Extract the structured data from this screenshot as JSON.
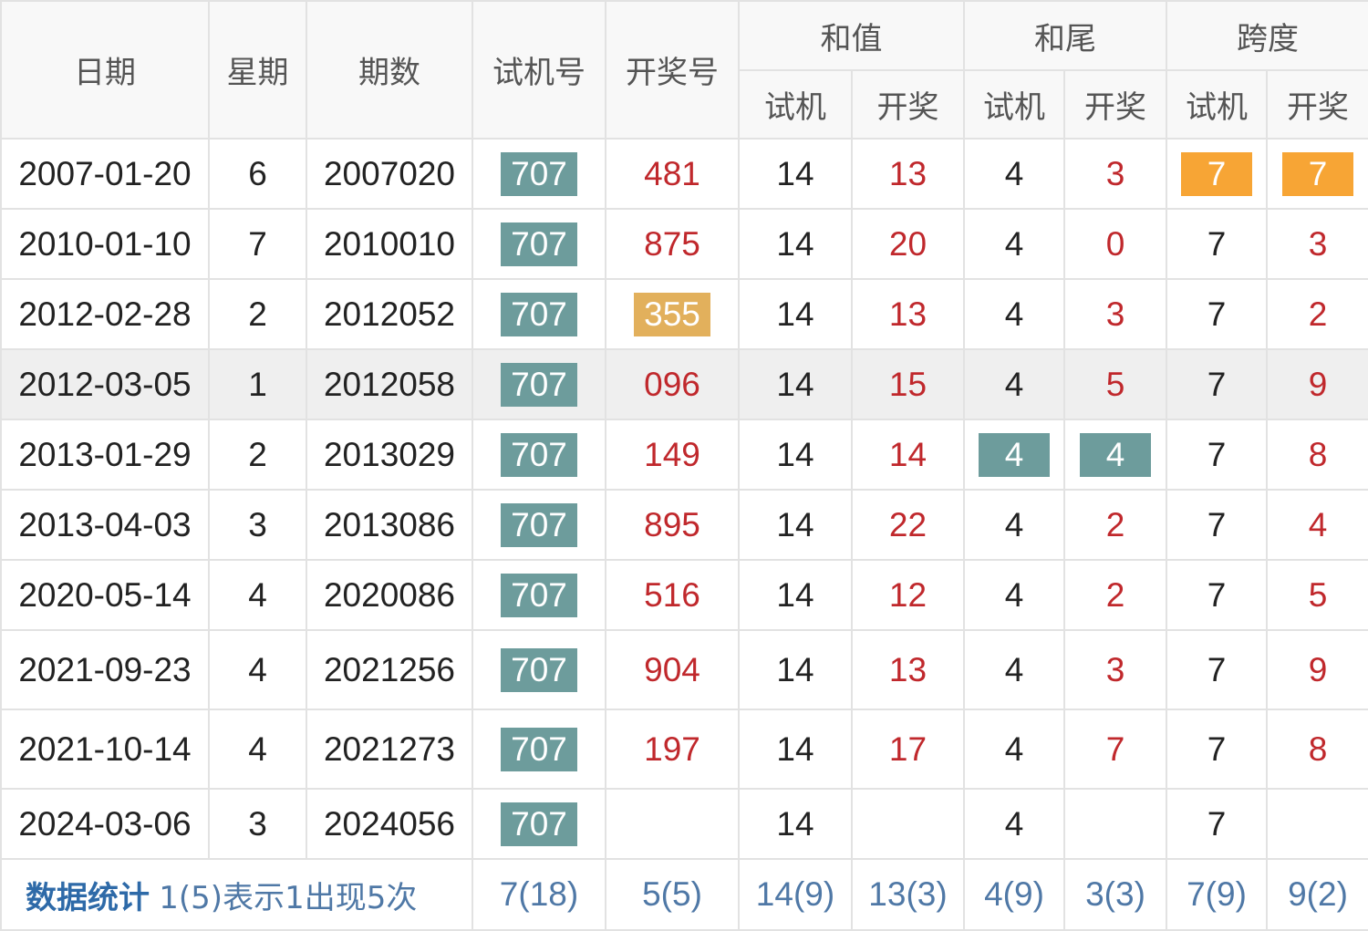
{
  "colors": {
    "trial_highlight": "#6d9c9c",
    "draw_highlight": "#e2b05c",
    "span_highlight": "#f7a535",
    "draw_text": "#c0282c",
    "stats_text": "#4f78a6"
  },
  "headers": {
    "date": "日期",
    "weekday": "星期",
    "issue": "期数",
    "trial": "试机号",
    "draw": "开奖号",
    "sum": "和值",
    "tail": "和尾",
    "span": "跨度",
    "sub_trial": "试机",
    "sub_draw": "开奖"
  },
  "rows": [
    {
      "date": "2007-01-20",
      "weekday": "6",
      "issue": "2007020",
      "trial": "707",
      "draw": "481",
      "sum_t": "14",
      "sum_d": "13",
      "tail_t": "4",
      "tail_d": "3",
      "span_t": "7",
      "span_d": "7",
      "hl": {
        "span_t": "orange",
        "span_d": "orange"
      }
    },
    {
      "date": "2010-01-10",
      "weekday": "7",
      "issue": "2010010",
      "trial": "707",
      "draw": "875",
      "sum_t": "14",
      "sum_d": "20",
      "tail_t": "4",
      "tail_d": "0",
      "span_t": "7",
      "span_d": "3",
      "hl": {}
    },
    {
      "date": "2012-02-28",
      "weekday": "2",
      "issue": "2012052",
      "trial": "707",
      "draw": "355",
      "sum_t": "14",
      "sum_d": "13",
      "tail_t": "4",
      "tail_d": "3",
      "span_t": "7",
      "span_d": "2",
      "hl": {
        "draw": "gold"
      }
    },
    {
      "date": "2012-03-05",
      "weekday": "1",
      "issue": "2012058",
      "trial": "707",
      "draw": "096",
      "sum_t": "14",
      "sum_d": "15",
      "tail_t": "4",
      "tail_d": "5",
      "span_t": "7",
      "span_d": "9",
      "hl": {},
      "hover": true
    },
    {
      "date": "2013-01-29",
      "weekday": "2",
      "issue": "2013029",
      "trial": "707",
      "draw": "149",
      "sum_t": "14",
      "sum_d": "14",
      "tail_t": "4",
      "tail_d": "4",
      "span_t": "7",
      "span_d": "8",
      "hl": {
        "tail_t": "teal",
        "tail_d": "teal"
      }
    },
    {
      "date": "2013-04-03",
      "weekday": "3",
      "issue": "2013086",
      "trial": "707",
      "draw": "895",
      "sum_t": "14",
      "sum_d": "22",
      "tail_t": "4",
      "tail_d": "2",
      "span_t": "7",
      "span_d": "4",
      "hl": {}
    },
    {
      "date": "2020-05-14",
      "weekday": "4",
      "issue": "2020086",
      "trial": "707",
      "draw": "516",
      "sum_t": "14",
      "sum_d": "12",
      "tail_t": "4",
      "tail_d": "2",
      "span_t": "7",
      "span_d": "5",
      "hl": {}
    },
    {
      "date": "2021-09-23",
      "weekday": "4",
      "issue": "2021256",
      "trial": "707",
      "draw": "904",
      "sum_t": "14",
      "sum_d": "13",
      "tail_t": "4",
      "tail_d": "3",
      "span_t": "7",
      "span_d": "9",
      "hl": {},
      "tall": true
    },
    {
      "date": "2021-10-14",
      "weekday": "4",
      "issue": "2021273",
      "trial": "707",
      "draw": "197",
      "sum_t": "14",
      "sum_d": "17",
      "tail_t": "4",
      "tail_d": "7",
      "span_t": "7",
      "span_d": "8",
      "hl": {},
      "tall": true
    },
    {
      "date": "2024-03-06",
      "weekday": "3",
      "issue": "2024056",
      "trial": "707",
      "draw": "",
      "sum_t": "14",
      "sum_d": "",
      "tail_t": "4",
      "tail_d": "",
      "span_t": "7",
      "span_d": "",
      "hl": {}
    }
  ],
  "stats": {
    "title": "数据统计",
    "note": "1(5)表示1出现5次",
    "trial": "7(18)",
    "draw": "5(5)",
    "sum_t": "14(9)",
    "sum_d": "13(3)",
    "tail_t": "4(9)",
    "tail_d": "3(3)",
    "span_t": "7(9)",
    "span_d": "9(2)"
  }
}
